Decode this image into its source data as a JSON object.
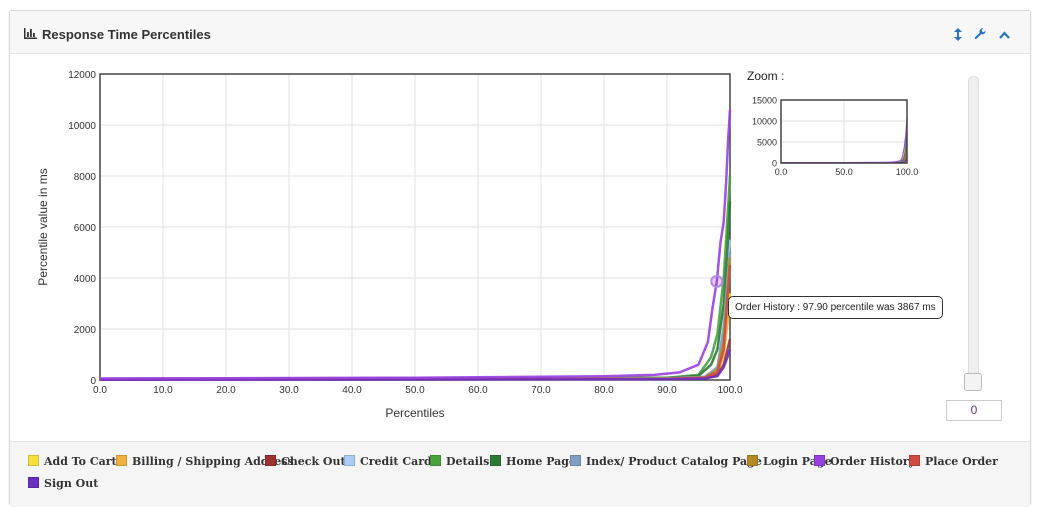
{
  "panel": {
    "title": "Response Time Percentiles",
    "icons": [
      "bar-chart-icon",
      "resize-vertical-icon",
      "wrench-icon",
      "chevron-up-icon"
    ]
  },
  "tooltip": "Order History : 97.90 percentile was 3867 ms",
  "zoom": {
    "label": "Zoom :",
    "y_ticks": [
      "15000",
      "10000",
      "5000",
      "0"
    ],
    "x_ticks": [
      "0.0",
      "50.0",
      "100.0"
    ]
  },
  "slider": {
    "value": "0"
  },
  "chart_data": {
    "type": "line",
    "title": "",
    "xlabel": "Percentiles",
    "ylabel": "Percentile value in ms",
    "xlim": [
      0,
      100
    ],
    "ylim": [
      0,
      12000
    ],
    "x_ticks": [
      "0.0",
      "10.0",
      "20.0",
      "30.0",
      "40.0",
      "50.0",
      "60.0",
      "70.0",
      "80.0",
      "90.0",
      "100.0"
    ],
    "y_ticks": [
      "0",
      "2000",
      "4000",
      "6000",
      "8000",
      "10000",
      "12000"
    ],
    "grid": true,
    "legend_position": "bottom",
    "highlight": {
      "series": "Order History",
      "x": 97.9,
      "y": 3867
    },
    "series": [
      {
        "name": "Add To Cart",
        "color": "#f5e03a",
        "points": [
          [
            0,
            30
          ],
          [
            90,
            60
          ],
          [
            96,
            110
          ],
          [
            98,
            350
          ],
          [
            99,
            1300
          ],
          [
            99.6,
            2600
          ],
          [
            100,
            3400
          ]
        ]
      },
      {
        "name": "Billing / Shipping Address",
        "color": "#f0b23b",
        "points": [
          [
            0,
            25
          ],
          [
            90,
            55
          ],
          [
            96,
            100
          ],
          [
            98,
            300
          ],
          [
            99,
            1000
          ],
          [
            99.6,
            2200
          ],
          [
            100,
            3000
          ]
        ]
      },
      {
        "name": "Check Out",
        "color": "#9c3230",
        "points": [
          [
            0,
            15
          ],
          [
            90,
            35
          ],
          [
            96,
            70
          ],
          [
            98,
            200
          ],
          [
            99,
            600
          ],
          [
            99.6,
            1200
          ],
          [
            100,
            1600
          ]
        ]
      },
      {
        "name": "Credit Card",
        "color": "#a9cdf5",
        "points": [
          [
            0,
            20
          ],
          [
            90,
            45
          ],
          [
            96,
            90
          ],
          [
            98,
            400
          ],
          [
            99,
            2200
          ],
          [
            99.6,
            4500
          ],
          [
            100,
            5500
          ]
        ]
      },
      {
        "name": "Details",
        "color": "#49a13f",
        "points": [
          [
            0,
            40
          ],
          [
            90,
            90
          ],
          [
            95,
            200
          ],
          [
            97,
            900
          ],
          [
            98,
            1800
          ],
          [
            99,
            4000
          ],
          [
            99.6,
            6400
          ],
          [
            100,
            8000
          ]
        ]
      },
      {
        "name": "Home Page",
        "color": "#2c7a36",
        "points": [
          [
            0,
            35
          ],
          [
            90,
            80
          ],
          [
            95,
            160
          ],
          [
            97,
            600
          ],
          [
            98,
            1200
          ],
          [
            99,
            3000
          ],
          [
            99.6,
            5200
          ],
          [
            100,
            7000
          ]
        ]
      },
      {
        "name": "Index/ Product Catalog Page",
        "color": "#7f9ec2",
        "points": [
          [
            0,
            30
          ],
          [
            90,
            70
          ],
          [
            96,
            130
          ],
          [
            98,
            500
          ],
          [
            99,
            2000
          ],
          [
            99.6,
            4000
          ],
          [
            100,
            5000
          ]
        ]
      },
      {
        "name": "Login Page",
        "color": "#b48a24",
        "points": [
          [
            0,
            20
          ],
          [
            90,
            50
          ],
          [
            96,
            100
          ],
          [
            98,
            400
          ],
          [
            99,
            1500
          ],
          [
            99.6,
            3500
          ],
          [
            100,
            4800
          ]
        ]
      },
      {
        "name": "Order History",
        "color": "#9a3fe0",
        "points": [
          [
            0,
            60
          ],
          [
            20,
            70
          ],
          [
            50,
            90
          ],
          [
            80,
            150
          ],
          [
            88,
            200
          ],
          [
            92,
            300
          ],
          [
            95,
            600
          ],
          [
            96.5,
            1500
          ],
          [
            97.2,
            2800
          ],
          [
            97.9,
            3867
          ],
          [
            98.5,
            5400
          ],
          [
            99,
            6200
          ],
          [
            99.4,
            7800
          ],
          [
            99.7,
            9400
          ],
          [
            100,
            10600
          ]
        ]
      },
      {
        "name": "Place Order",
        "color": "#cf4a43",
        "points": [
          [
            0,
            20
          ],
          [
            90,
            45
          ],
          [
            96,
            90
          ],
          [
            98,
            300
          ],
          [
            99,
            1200
          ],
          [
            99.6,
            3200
          ],
          [
            100,
            4500
          ]
        ]
      },
      {
        "name": "Sign Out",
        "color": "#6a2fc2",
        "points": [
          [
            0,
            10
          ],
          [
            90,
            30
          ],
          [
            96,
            60
          ],
          [
            98,
            150
          ],
          [
            99,
            500
          ],
          [
            99.6,
            900
          ],
          [
            100,
            1200
          ]
        ]
      }
    ]
  }
}
